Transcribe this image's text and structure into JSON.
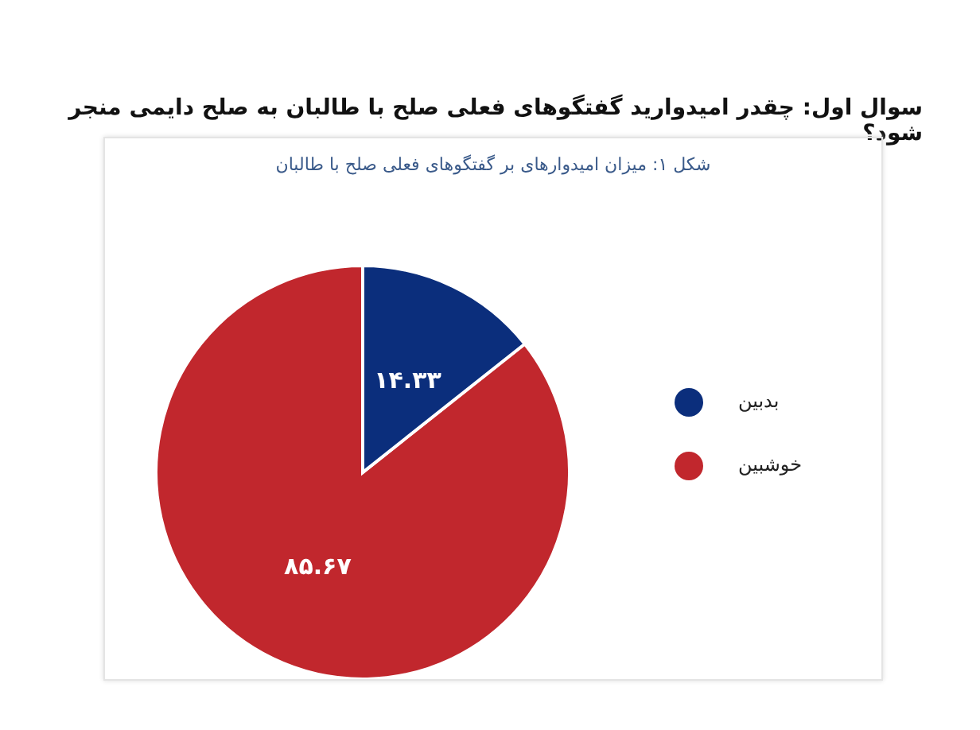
{
  "chart_data": {
    "type": "pie",
    "title": "سوال اول: چقدر امیدوارید گفتگوهای فعلی صلح با طالبان به صلح دایمی منجر شود؟",
    "subtitle": "شکل ۱: میزان امیدوارهای بر گفتگوهای فعلی صلح با طالبان",
    "categories": [
      "خوشبین",
      "بدبین"
    ],
    "values": [
      85.67,
      14.33
    ],
    "colors": [
      "#c1272d",
      "#0b2e7c"
    ],
    "value_labels": [
      "۸۵.۶۷",
      "۱۴.۳۳"
    ],
    "legend": "right"
  }
}
